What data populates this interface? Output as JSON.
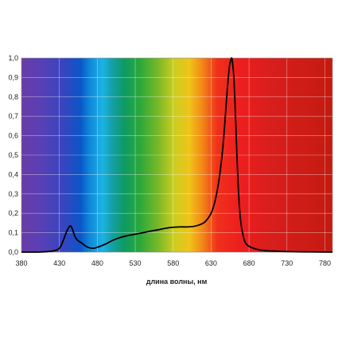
{
  "chart_data": {
    "type": "line",
    "title": "",
    "xlabel": "длина волны, нм",
    "ylabel": "",
    "xlim": [
      380,
      790
    ],
    "ylim": [
      0,
      1.0
    ],
    "grid": true,
    "background": "visible-spectrum-gradient",
    "x_ticks": [
      "380",
      "430",
      "480",
      "530",
      "580",
      "630",
      "680",
      "730",
      "780"
    ],
    "y_ticks": [
      "0,0",
      "0,1",
      "0,2",
      "0,3",
      "0,4",
      "0,5",
      "0,6",
      "0,7",
      "0,8",
      "0,9",
      "1,0"
    ],
    "line_color": "#000000",
    "series": [
      {
        "x": [
          380,
          400,
          420,
          430,
          435,
          440,
          444,
          447,
          450,
          453,
          456,
          460,
          465,
          470,
          475,
          480,
          490,
          500,
          510,
          520,
          530,
          540,
          550,
          560,
          570,
          580,
          590,
          600,
          610,
          620,
          625,
          630,
          635,
          640,
          645,
          648,
          651,
          654,
          656,
          657,
          658,
          660,
          662,
          664,
          666,
          668,
          670,
          672,
          675,
          680,
          690,
          700,
          720,
          740,
          760,
          790
        ],
        "y": [
          0.0,
          0.0,
          0.005,
          0.02,
          0.06,
          0.11,
          0.135,
          0.12,
          0.085,
          0.065,
          0.055,
          0.045,
          0.03,
          0.022,
          0.02,
          0.025,
          0.04,
          0.06,
          0.075,
          0.085,
          0.092,
          0.1,
          0.108,
          0.115,
          0.123,
          0.128,
          0.13,
          0.13,
          0.135,
          0.15,
          0.17,
          0.2,
          0.26,
          0.36,
          0.52,
          0.66,
          0.82,
          0.95,
          0.99,
          1.0,
          0.985,
          0.9,
          0.72,
          0.5,
          0.32,
          0.2,
          0.13,
          0.09,
          0.05,
          0.03,
          0.015,
          0.008,
          0.004,
          0.002,
          0.001,
          0.0
        ]
      }
    ]
  }
}
